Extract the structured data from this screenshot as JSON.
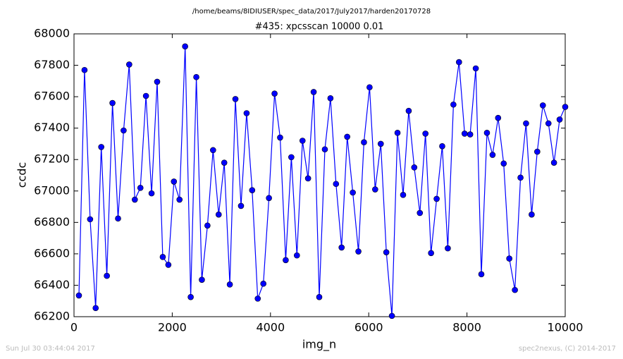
{
  "chart_data": {
    "type": "line",
    "suptitle": "/home/beams/8IDIUSER/spec_data/2017/July2017/harden20170728",
    "title": "#435: xpcsscan 10000 0.01",
    "x_label": "img_n",
    "y_label": "ccdc",
    "footer_left": "Sun Jul 30 03:44:04 2017",
    "footer_right": "spec2nexus, (C) 2014-2017",
    "x": [
      100,
      214,
      328,
      441,
      555,
      669,
      783,
      897,
      1010,
      1124,
      1238,
      1352,
      1465,
      1579,
      1693,
      1807,
      1921,
      2034,
      2148,
      2262,
      2376,
      2490,
      2603,
      2717,
      2831,
      2945,
      3059,
      3172,
      3286,
      3400,
      3514,
      3627,
      3741,
      3855,
      3969,
      4083,
      4196,
      4310,
      4424,
      4538,
      4652,
      4765,
      4879,
      4993,
      5107,
      5221,
      5334,
      5448,
      5562,
      5676,
      5790,
      5903,
      6017,
      6131,
      6245,
      6358,
      6472,
      6586,
      6700,
      6814,
      6927,
      7041,
      7155,
      7269,
      7383,
      7496,
      7610,
      7724,
      7838,
      7952,
      8065,
      8179,
      8293,
      8407,
      8521,
      8634,
      8748,
      8862,
      8976,
      9090,
      9203,
      9317,
      9431,
      9545,
      9659,
      9772,
      9886,
      10000
    ],
    "series": [
      {
        "color": "#0000ff",
        "values": [
          66335,
          67770,
          66820,
          66255,
          67280,
          66460,
          67560,
          66825,
          67385,
          67805,
          66945,
          67020,
          67605,
          66985,
          67695,
          66580,
          66530,
          67060,
          66945,
          67920,
          66325,
          67725,
          66435,
          66780,
          67260,
          66850,
          67180,
          66405,
          67585,
          66905,
          67495,
          67005,
          66315,
          66410,
          66955,
          67620,
          67340,
          66560,
          67215,
          66590,
          67320,
          67080,
          67630,
          66325,
          67265,
          67590,
          67045,
          66640,
          67345,
          66990,
          66615,
          67310,
          67660,
          67010,
          67300,
          66610,
          66205,
          67370,
          66975,
          67510,
          67150,
          66860,
          67365,
          66605,
          66950,
          67285,
          66635,
          67550,
          67820,
          67365,
          67360,
          67780,
          66470,
          67370,
          67230,
          67465,
          67175,
          66570,
          66370,
          67085,
          67430,
          66850,
          67250,
          67545,
          67430,
          67180,
          67455,
          67535
        ]
      }
    ],
    "xlim": [
      0,
      10000
    ],
    "xticks": [
      0,
      2000,
      4000,
      6000,
      8000,
      10000
    ],
    "ylim": [
      66200,
      68000
    ],
    "yticks": [
      66200,
      66400,
      66600,
      66800,
      67000,
      67200,
      67400,
      67600,
      67800,
      68000
    ]
  }
}
